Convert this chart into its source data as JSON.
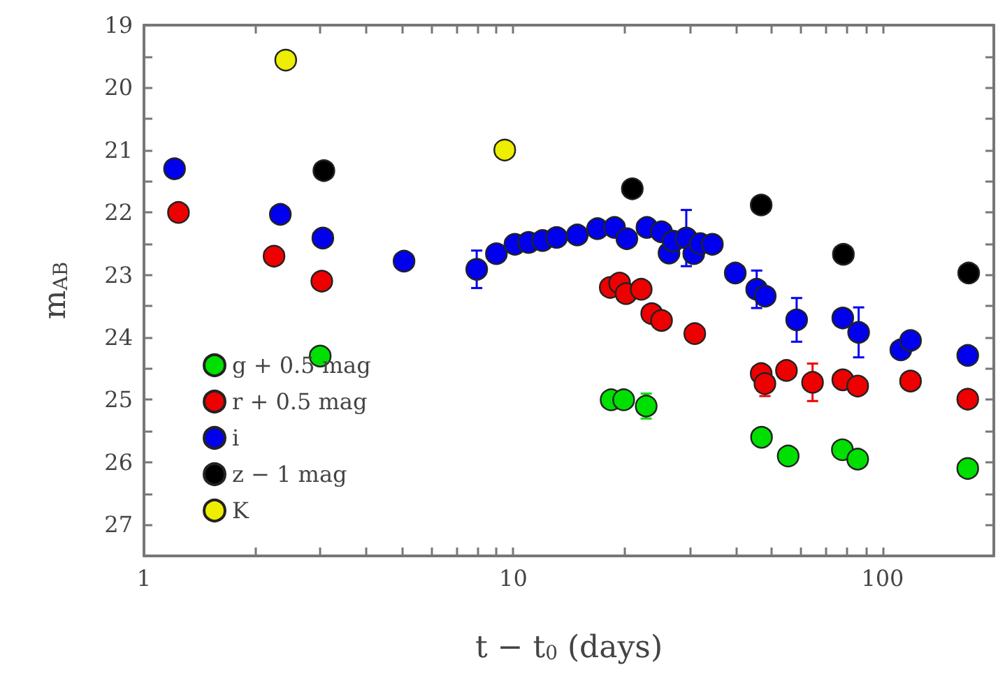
{
  "chart_data": {
    "type": "scatter",
    "xlabel": "t − t$_{0}$ (days)",
    "ylabel": "m$_{AB}$",
    "log": "x",
    "grid": false,
    "legend": "bottom left",
    "marker": "circle",
    "xlim": [
      1,
      200
    ],
    "ylim": [
      27.5,
      19
    ],
    "xticks": [
      1,
      {
        "value": 2,
        "label": null
      },
      {
        "value": 3,
        "label": null
      },
      {
        "value": 4,
        "label": null
      },
      {
        "value": 5,
        "label": null
      },
      {
        "value": 6,
        "label": null
      },
      {
        "value": 7,
        "label": null
      },
      {
        "value": 8,
        "label": null
      },
      {
        "value": 9,
        "label": null
      },
      10,
      {
        "value": 20,
        "label": null
      },
      {
        "value": 30,
        "label": null
      },
      {
        "value": 40,
        "label": null
      },
      {
        "value": 50,
        "label": null
      },
      {
        "value": 60,
        "label": null
      },
      {
        "value": 70,
        "label": null
      },
      {
        "value": 80,
        "label": null
      },
      {
        "value": 90,
        "label": null
      },
      100,
      {
        "value": 200,
        "label": null
      }
    ],
    "yticks": [
      19,
      {
        "value": 19.5,
        "label": null
      },
      20,
      {
        "value": 20.5,
        "label": null
      },
      21,
      {
        "value": 21.5,
        "label": null
      },
      22,
      {
        "value": 22.5,
        "label": null
      },
      23,
      {
        "value": 23.5,
        "label": null
      },
      24,
      {
        "value": 24.5,
        "label": null
      },
      25,
      {
        "value": 25.5,
        "label": null
      },
      26,
      {
        "value": 26.5,
        "label": null
      },
      27
    ],
    "series": [
      {
        "name": "g + 0.5 mag",
        "color": "#00e000",
        "x": [
          3.0,
          18.4,
          19.9,
          22.9,
          47,
          55.5,
          77.8,
          85.6,
          170
        ],
        "values": [
          24.3,
          25.0,
          25.0,
          25.1,
          25.6,
          25.9,
          25.8,
          25.95,
          26.1
        ],
        "errors": [
          null,
          null,
          null,
          0.2,
          0.1,
          null,
          null,
          null,
          null
        ]
      },
      {
        "name": "r + 0.5 mag",
        "color": "#ee0000",
        "x": [
          1.24,
          2.25,
          3.03,
          18.3,
          19.4,
          20.2,
          22.2,
          22.7,
          23.7,
          25.2,
          31,
          46.9,
          48,
          54.9,
          64.6,
          78,
          85.6,
          119,
          170
        ],
        "values": [
          22.0,
          22.7,
          23.1,
          23.2,
          23.13,
          23.3,
          23.23,
          null,
          23.62,
          23.73,
          23.94,
          24.58,
          24.74,
          24.53,
          24.72,
          24.68,
          24.78,
          24.7,
          24.99
        ],
        "errors": [
          null,
          null,
          null,
          null,
          null,
          null,
          null,
          null,
          null,
          null,
          null,
          null,
          0.2,
          null,
          0.3,
          null,
          null,
          null,
          null
        ]
      },
      {
        "name": "i",
        "color": "#0000ee",
        "x": [
          1.21,
          2.34,
          3.05,
          5.06,
          7.96,
          9.0,
          10.1,
          11,
          12,
          13.1,
          14.9,
          16.9,
          18.8,
          20.3,
          23,
          25.2,
          26.4,
          27.1,
          29.4,
          30.8,
          32.1,
          34.6,
          39.9,
          45.6,
          48.1,
          58.5,
          78,
          86.1,
          112,
          119,
          170
        ],
        "values": [
          21.3,
          22.03,
          22.41,
          22.78,
          22.91,
          22.66,
          22.51,
          22.48,
          22.45,
          22.4,
          22.36,
          22.26,
          22.24,
          22.42,
          22.24,
          22.31,
          22.65,
          22.46,
          22.41,
          22.66,
          22.5,
          22.51,
          22.97,
          23.23,
          23.34,
          23.72,
          23.69,
          23.92,
          24.2,
          24.05,
          24.29
        ],
        "errors": [
          null,
          null,
          null,
          null,
          0.3,
          null,
          null,
          null,
          null,
          null,
          null,
          null,
          null,
          null,
          null,
          null,
          null,
          null,
          0.45,
          null,
          null,
          null,
          null,
          0.3,
          null,
          0.35,
          null,
          0.4,
          0.1,
          null,
          null
        ]
      },
      {
        "name": "z − 1 mag",
        "color": "#000000",
        "x": [
          3.07,
          21,
          46.9,
          78.3,
          171
        ],
        "values": [
          21.33,
          21.62,
          21.88,
          22.67,
          22.97
        ]
      },
      {
        "name": "K",
        "color": "#eeee00",
        "x": [
          2.42,
          9.48
        ],
        "values": [
          19.56,
          21.0
        ]
      }
    ]
  }
}
